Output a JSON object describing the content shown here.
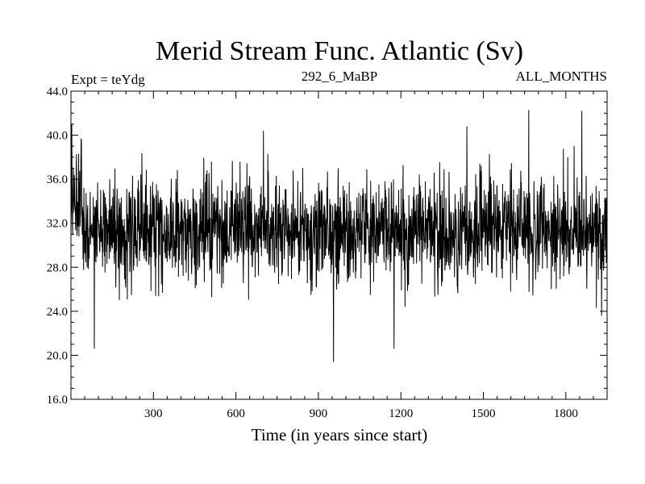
{
  "chart_data": {
    "type": "line",
    "title": "Merid Stream Func. Atlantic (Sv)",
    "subtitle_left": "Expt = teYdg",
    "subtitle_center": "292_6_MaBP",
    "subtitle_right": "ALL_MONTHS",
    "xlabel": "Time (in years since start)",
    "ylabel": "",
    "xlim": [
      0,
      1950
    ],
    "ylim": [
      16.0,
      44.0
    ],
    "x_ticks": [
      300,
      600,
      900,
      1200,
      1500,
      1800
    ],
    "x_tick_labels": [
      "300",
      "600",
      "900",
      "1200",
      "1500",
      "1800"
    ],
    "y_ticks": [
      16.0,
      20.0,
      24.0,
      28.0,
      32.0,
      36.0,
      40.0,
      44.0
    ],
    "y_tick_labels": [
      "16.0",
      "20.0",
      "24.0",
      "28.0",
      "32.0",
      "36.0",
      "40.0",
      "44.0"
    ],
    "grid": false,
    "legend": "none",
    "line_color": "#000000",
    "series": [
      {
        "x_start": 0,
        "x_step": 1,
        "count": 1950,
        "mean": 31.3,
        "noise_sd": 2.4,
        "notable_points": [
          {
            "x": 3,
            "y": 41.0
          },
          {
            "x": 85,
            "y": 20.6
          },
          {
            "x": 700,
            "y": 40.4
          },
          {
            "x": 955,
            "y": 19.4
          },
          {
            "x": 1175,
            "y": 20.6
          },
          {
            "x": 1440,
            "y": 40.8
          },
          {
            "x": 1665,
            "y": 42.3
          },
          {
            "x": 1858,
            "y": 42.2
          },
          {
            "x": 1930,
            "y": 23.6
          }
        ]
      }
    ]
  }
}
